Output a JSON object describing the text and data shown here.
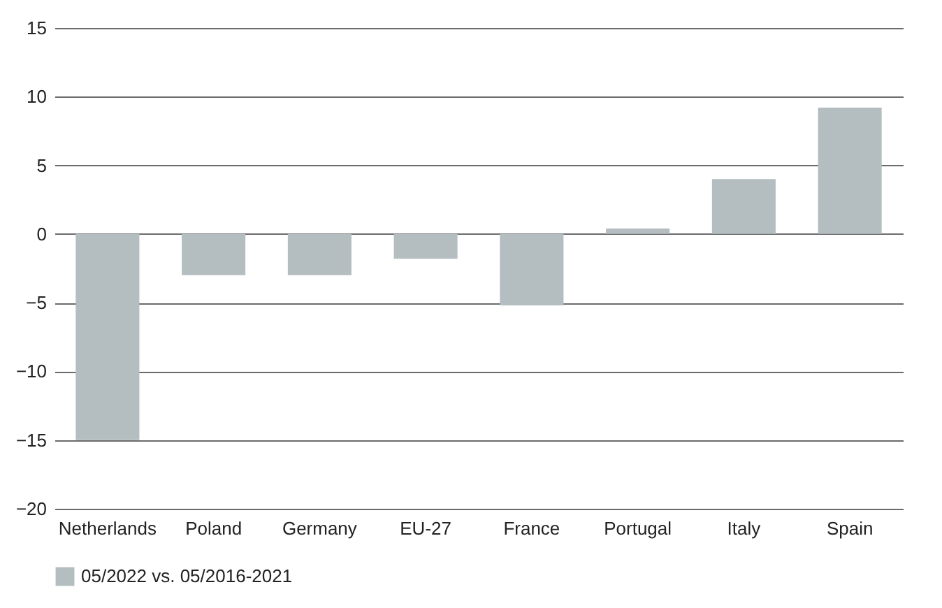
{
  "chart_data": {
    "type": "bar",
    "categories": [
      "Netherlands",
      "Poland",
      "Germany",
      "EU-27",
      "France",
      "Portugal",
      "Italy",
      "Spain"
    ],
    "series": [
      {
        "name": "05/2022 vs. 05/2016-2021",
        "color": "#b4bdc0",
        "values": [
          -15,
          -3,
          -3,
          -1.8,
          -5.2,
          0.4,
          4,
          9.2
        ]
      }
    ],
    "ylim": [
      -20,
      15
    ],
    "yticks": [
      -20,
      -15,
      -10,
      -5,
      0,
      5,
      10,
      15
    ],
    "grid": "y",
    "legend": "bottom"
  }
}
